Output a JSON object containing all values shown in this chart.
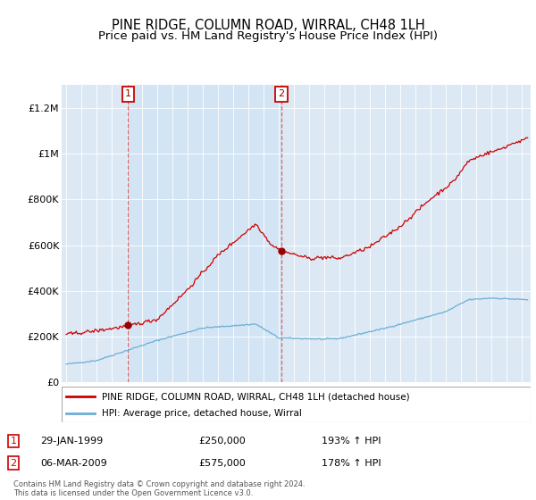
{
  "title": "PINE RIDGE, COLUMN ROAD, WIRRAL, CH48 1LH",
  "subtitle": "Price paid vs. HM Land Registry's House Price Index (HPI)",
  "ylim": [
    0,
    1300000
  ],
  "yticks": [
    0,
    200000,
    400000,
    600000,
    800000,
    1000000,
    1200000
  ],
  "ytick_labels": [
    "£0",
    "£200K",
    "£400K",
    "£600K",
    "£800K",
    "£1M",
    "£1.2M"
  ],
  "red_line_color": "#cc0000",
  "blue_line_color": "#6baed6",
  "vline_color": "#e06060",
  "annotation_box_color": "#cc0000",
  "background_fill": "#dce9f5",
  "background_between": "#e8f0f8",
  "legend_label_red": "PINE RIDGE, COLUMN ROAD, WIRRAL, CH48 1LH (detached house)",
  "legend_label_blue": "HPI: Average price, detached house, Wirral",
  "sale1_date_num": 1999.08,
  "sale1_price": 250000,
  "sale2_date_num": 2009.18,
  "sale2_price": 575000,
  "footer": "Contains HM Land Registry data © Crown copyright and database right 2024.\nThis data is licensed under the Open Government Licence v3.0.",
  "title_fontsize": 10.5,
  "subtitle_fontsize": 9.5
}
